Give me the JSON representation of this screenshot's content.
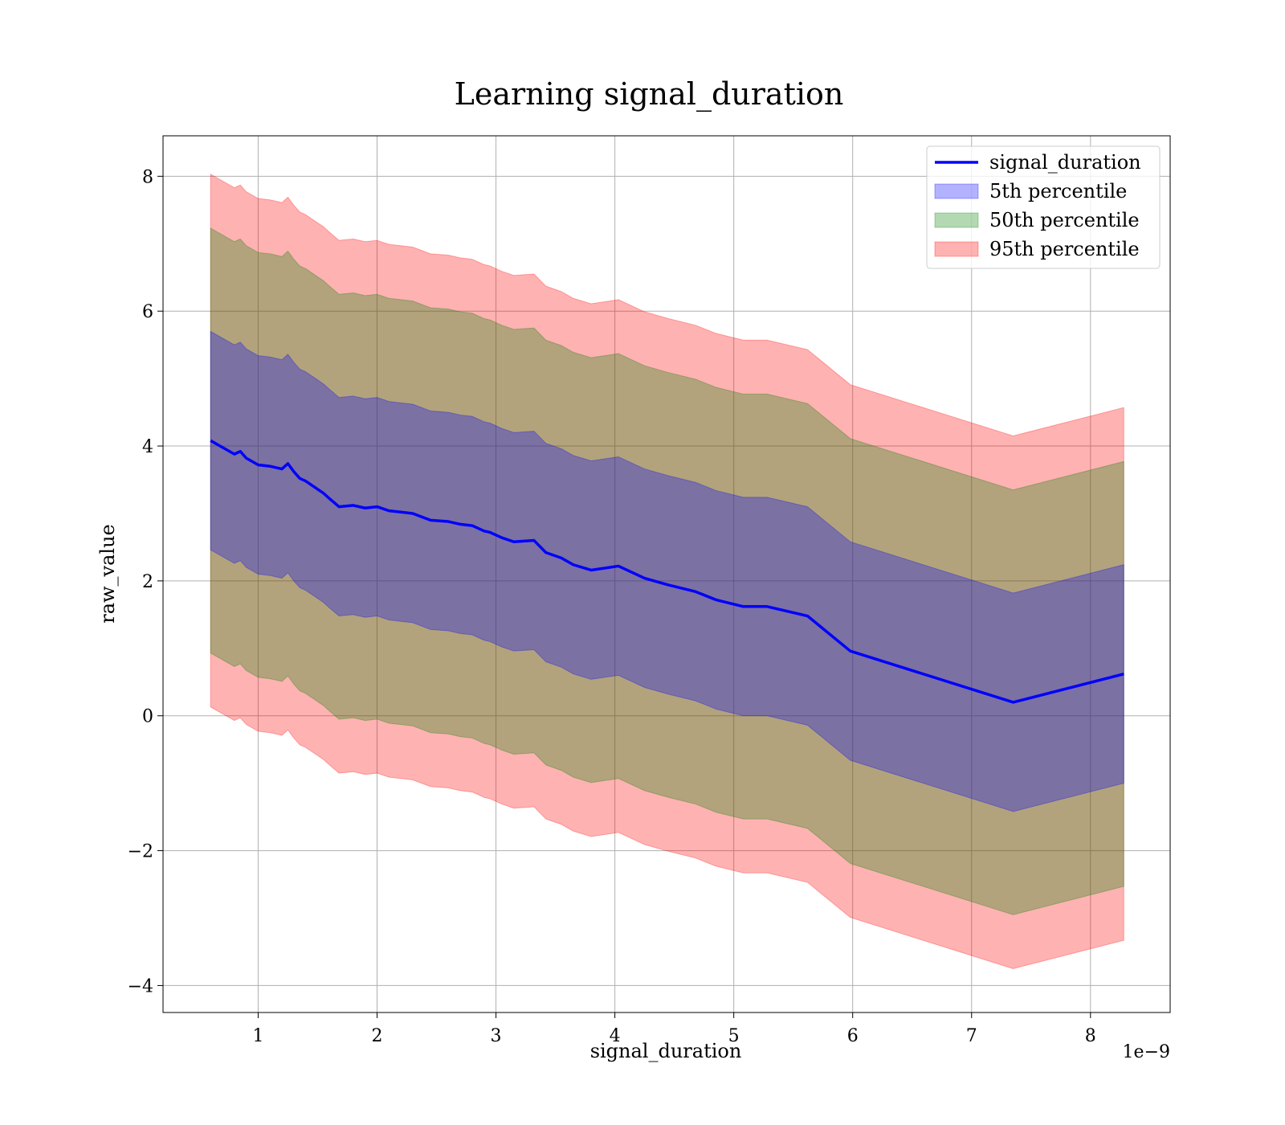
{
  "chart_data": {
    "type": "area",
    "title": "Learning signal_duration",
    "xlabel": "signal_duration",
    "ylabel": "raw_value",
    "x_offset_label": "1e−9",
    "xlim": [
      0.2,
      8.67
    ],
    "ylim": [
      -4.4,
      8.6
    ],
    "x_ticks": [
      1,
      2,
      3,
      4,
      5,
      6,
      7,
      8
    ],
    "y_ticks": [
      -4,
      -2,
      0,
      2,
      4,
      6,
      8
    ],
    "x_tick_labels": [
      "1",
      "2",
      "3",
      "4",
      "5",
      "6",
      "7",
      "8"
    ],
    "y_tick_labels": [
      "−4",
      "−2",
      "0",
      "2",
      "4",
      "6",
      "8"
    ],
    "grid": true,
    "legend_position": "upper right",
    "colors": {
      "line": "#0000ff",
      "p5": "#0000ff",
      "p50": "#008000",
      "p95": "#ff0000"
    },
    "x": [
      0.6,
      0.7,
      0.8,
      0.85,
      0.9,
      1.0,
      1.1,
      1.15,
      1.2,
      1.25,
      1.3,
      1.35,
      1.4,
      1.5,
      1.55,
      1.6,
      1.68,
      1.8,
      1.9,
      2.0,
      2.1,
      2.2,
      2.3,
      2.45,
      2.6,
      2.7,
      2.8,
      2.9,
      2.95,
      3.05,
      3.15,
      3.32,
      3.42,
      3.55,
      3.65,
      3.8,
      4.03,
      4.25,
      4.45,
      4.68,
      4.85,
      5.08,
      5.28,
      5.62,
      5.98,
      7.35,
      8.28
    ],
    "series": [
      {
        "name": "signal_duration",
        "values": [
          4.08,
          3.98,
          3.88,
          3.92,
          3.82,
          3.72,
          3.7,
          3.68,
          3.66,
          3.74,
          3.62,
          3.52,
          3.48,
          3.36,
          3.3,
          3.22,
          3.1,
          3.12,
          3.08,
          3.1,
          3.04,
          3.02,
          3.0,
          2.9,
          2.88,
          2.84,
          2.82,
          2.74,
          2.72,
          2.64,
          2.58,
          2.6,
          2.42,
          2.34,
          2.24,
          2.16,
          2.22,
          2.04,
          1.94,
          1.84,
          1.72,
          1.62,
          1.62,
          1.48,
          0.96,
          0.2,
          0.62
        ]
      },
      {
        "name": "5th percentile",
        "offset": 1.62
      },
      {
        "name": "50th percentile",
        "offset": 3.15
      },
      {
        "name": "95th percentile",
        "offset": 3.95
      }
    ]
  }
}
